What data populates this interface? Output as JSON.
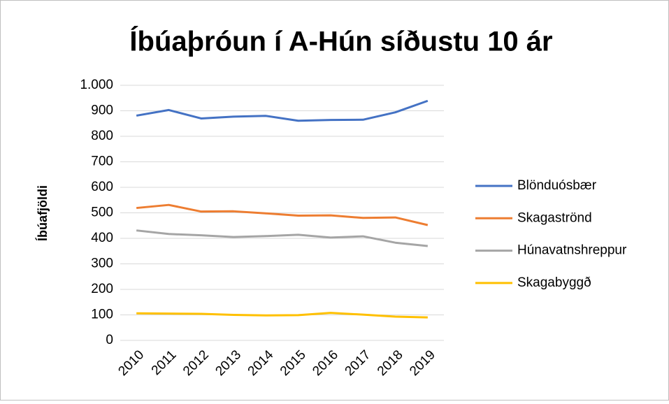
{
  "chart_data": {
    "type": "line",
    "title": "Íbúaþróun í A-Hún síðustu 10 ár",
    "y_label": "Íbúafjöldi",
    "categories": [
      "2010",
      "2011",
      "2012",
      "2013",
      "2014",
      "2015",
      "2016",
      "2017",
      "2018",
      "2019"
    ],
    "series": [
      {
        "name": "Blönduósbær",
        "color": "#4472c4",
        "values": [
          881,
          903,
          870,
          877,
          880,
          861,
          864,
          865,
          894,
          939
        ]
      },
      {
        "name": "Skagaströnd",
        "color": "#ed7d31",
        "values": [
          519,
          531,
          505,
          506,
          498,
          489,
          490,
          480,
          482,
          452
        ]
      },
      {
        "name": "Húnavatnshreppur",
        "color": "#a5a5a5",
        "values": [
          431,
          417,
          412,
          405,
          409,
          414,
          403,
          408,
          383,
          370
        ]
      },
      {
        "name": "Skagabyggð",
        "color": "#ffc000",
        "values": [
          106,
          105,
          104,
          100,
          98,
          99,
          108,
          101,
          93,
          90
        ]
      }
    ],
    "ylim": [
      0,
      1000
    ],
    "yticks": [
      0,
      100,
      200,
      300,
      400,
      500,
      600,
      700,
      800,
      900,
      {
        "value": 1000,
        "label": "1.000"
      }
    ],
    "grid": true,
    "legend": "right"
  }
}
